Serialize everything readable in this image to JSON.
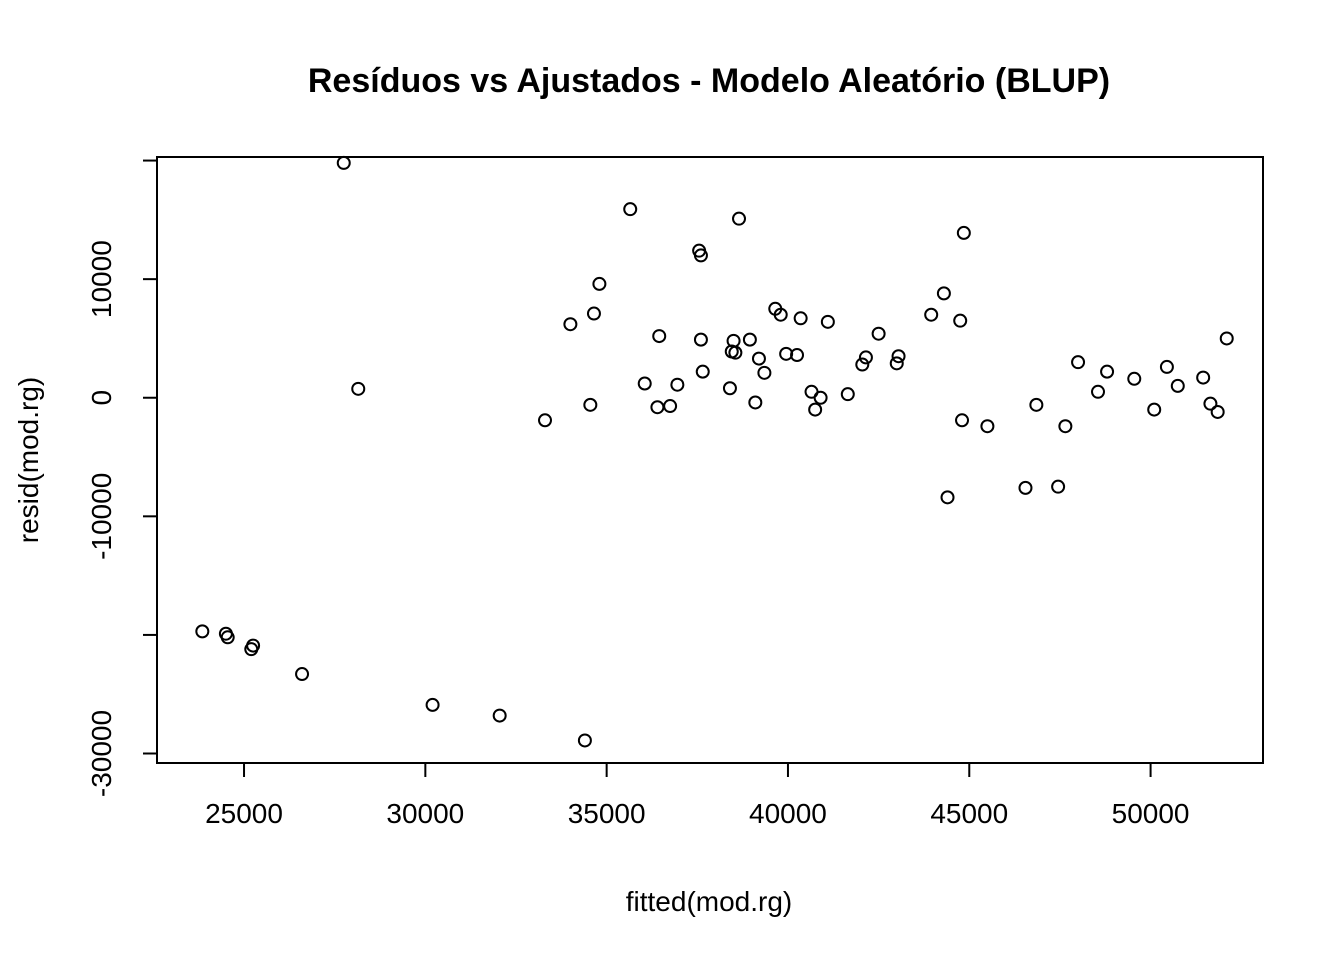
{
  "chart_data": {
    "type": "scatter",
    "title": "Resíduos vs Ajustados - Modelo Aleatório (BLUP)",
    "xlabel": "fitted(mod.rg)",
    "ylabel": "resid(mod.rg)",
    "xlim": [
      22600,
      53100
    ],
    "ylim": [
      -30800,
      20300
    ],
    "grid": false,
    "x_ticks": [
      25000,
      30000,
      35000,
      40000,
      45000,
      50000
    ],
    "x_tick_labels": [
      "25000",
      "30000",
      "35000",
      "40000",
      "45000",
      "50000"
    ],
    "y_ticks": [
      -30000,
      -10000,
      0,
      10000
    ],
    "y_tick_labels": [
      "-30000",
      "-10000",
      "0",
      "10000"
    ],
    "y_minor_ticks": [
      -20000,
      20000
    ],
    "points": [
      {
        "x": 23850,
        "y": -19700
      },
      {
        "x": 24500,
        "y": -19900
      },
      {
        "x": 24550,
        "y": -20200
      },
      {
        "x": 25200,
        "y": -21200
      },
      {
        "x": 25250,
        "y": -20900
      },
      {
        "x": 26600,
        "y": -23300
      },
      {
        "x": 27750,
        "y": 19800
      },
      {
        "x": 28150,
        "y": 750
      },
      {
        "x": 30200,
        "y": -25900
      },
      {
        "x": 32050,
        "y": -26800
      },
      {
        "x": 33300,
        "y": -1900
      },
      {
        "x": 34000,
        "y": 6200
      },
      {
        "x": 34400,
        "y": -28900
      },
      {
        "x": 34550,
        "y": -600
      },
      {
        "x": 34650,
        "y": 7100
      },
      {
        "x": 34800,
        "y": 9600
      },
      {
        "x": 35650,
        "y": 15900
      },
      {
        "x": 36050,
        "y": 1200
      },
      {
        "x": 36400,
        "y": -800
      },
      {
        "x": 36450,
        "y": 5200
      },
      {
        "x": 36750,
        "y": -700
      },
      {
        "x": 36950,
        "y": 1100
      },
      {
        "x": 37550,
        "y": 12400
      },
      {
        "x": 37600,
        "y": 12000
      },
      {
        "x": 37600,
        "y": 4900
      },
      {
        "x": 37650,
        "y": 2200
      },
      {
        "x": 38400,
        "y": 800
      },
      {
        "x": 38450,
        "y": 3900
      },
      {
        "x": 38500,
        "y": 4800
      },
      {
        "x": 38550,
        "y": 3800
      },
      {
        "x": 38650,
        "y": 15100
      },
      {
        "x": 38950,
        "y": 4900
      },
      {
        "x": 39100,
        "y": -400
      },
      {
        "x": 39200,
        "y": 3300
      },
      {
        "x": 39350,
        "y": 2100
      },
      {
        "x": 39650,
        "y": 7500
      },
      {
        "x": 39800,
        "y": 7000
      },
      {
        "x": 39950,
        "y": 3700
      },
      {
        "x": 40250,
        "y": 3600
      },
      {
        "x": 40350,
        "y": 6700
      },
      {
        "x": 40650,
        "y": 500
      },
      {
        "x": 40750,
        "y": -1000
      },
      {
        "x": 40900,
        "y": 0
      },
      {
        "x": 41100,
        "y": 6400
      },
      {
        "x": 41650,
        "y": 300
      },
      {
        "x": 42050,
        "y": 2800
      },
      {
        "x": 42150,
        "y": 3400
      },
      {
        "x": 42500,
        "y": 5400
      },
      {
        "x": 43000,
        "y": 2900
      },
      {
        "x": 43050,
        "y": 3500
      },
      {
        "x": 43950,
        "y": 7000
      },
      {
        "x": 44300,
        "y": 8800
      },
      {
        "x": 44400,
        "y": -8400
      },
      {
        "x": 44750,
        "y": 6500
      },
      {
        "x": 44800,
        "y": -1900
      },
      {
        "x": 44850,
        "y": 13900
      },
      {
        "x": 45500,
        "y": -2400
      },
      {
        "x": 46550,
        "y": -7600
      },
      {
        "x": 46850,
        "y": -600
      },
      {
        "x": 47450,
        "y": -7500
      },
      {
        "x": 47650,
        "y": -2400
      },
      {
        "x": 48000,
        "y": 3000
      },
      {
        "x": 48550,
        "y": 500
      },
      {
        "x": 48800,
        "y": 2200
      },
      {
        "x": 49550,
        "y": 1600
      },
      {
        "x": 50100,
        "y": -1000
      },
      {
        "x": 50450,
        "y": 2600
      },
      {
        "x": 50750,
        "y": 1000
      },
      {
        "x": 51450,
        "y": 1700
      },
      {
        "x": 51650,
        "y": -500
      },
      {
        "x": 51850,
        "y": -1200
      },
      {
        "x": 52100,
        "y": 5000
      }
    ]
  }
}
